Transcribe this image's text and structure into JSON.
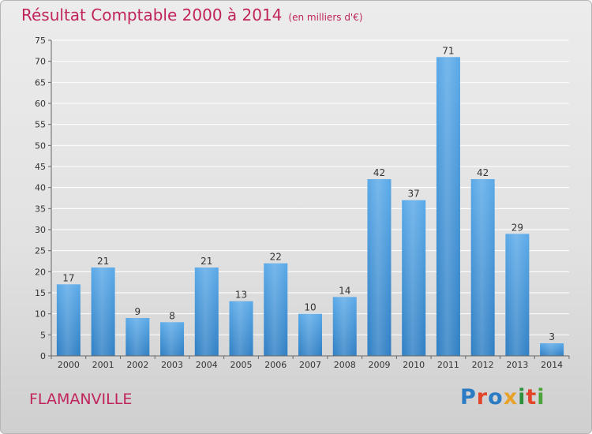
{
  "header": {
    "title": "Résultat Comptable 2000 à 2014",
    "subtitle": "(en milliers d'€)"
  },
  "footer": {
    "town": "FLAMANVILLE",
    "logo": "Proxiti"
  },
  "chart_data": {
    "type": "bar",
    "title": "Résultat Comptable 2000 à 2014",
    "subtitle": "(en milliers d'€)",
    "categories": [
      "2000",
      "2001",
      "2002",
      "2003",
      "2004",
      "2005",
      "2006",
      "2007",
      "2008",
      "2009",
      "2010",
      "2011",
      "2012",
      "2013",
      "2014"
    ],
    "values": [
      17,
      21,
      9,
      8,
      21,
      13,
      22,
      10,
      14,
      42,
      37,
      71,
      42,
      29,
      3
    ],
    "ylim": [
      0,
      75
    ],
    "yticks": [
      0,
      5,
      10,
      15,
      20,
      25,
      30,
      35,
      40,
      45,
      50,
      55,
      60,
      65,
      70,
      75
    ],
    "grid": true,
    "bar_color": "#4a9de0"
  }
}
